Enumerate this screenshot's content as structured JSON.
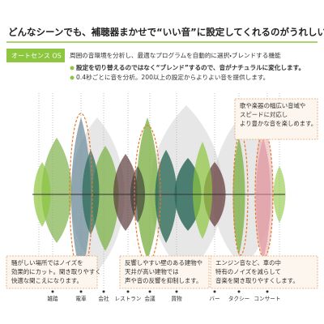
{
  "header": {
    "title": "どんなシーンでも、補聴器まかせで“いい音”に設定してくれるのがうれしい。"
  },
  "feature": {
    "tag": "オートセンス OS",
    "description": "周囲の音環境を分析し、最適なプログラムを自動的に選択・ブレンドする機能",
    "bullets": [
      "設定を切り替えるのではなく“ブレンド”するので、音がナチュラルに変化します。",
      "0.4秒ごとに音を分析。200以上の設定からよりよい音を提供します。"
    ]
  },
  "callouts": [
    {
      "lines": [
        "歌や楽器の幅広い音域や",
        "スピードに対応し",
        "より豊かな音を楽しめます。"
      ]
    },
    {
      "lines": [
        "騒がしい場所ではノイズを",
        "効果的にカット。聞き取りやすく",
        "快適な聞こえになります。"
      ]
    },
    {
      "lines": [
        "反響しやすい壁のある建物や",
        "天井が高い建物では",
        "声や音の反響を抑制します。"
      ]
    },
    {
      "lines": [
        "エンジン音など、車の中",
        "特有のノイズを減らして",
        "音楽を聞き取りやすくします。"
      ]
    }
  ],
  "scenes": [
    "雑踏",
    "電車",
    "会社",
    "レストラン",
    "会議",
    "買物",
    "バー",
    "タクシー",
    "コンサート"
  ]
}
